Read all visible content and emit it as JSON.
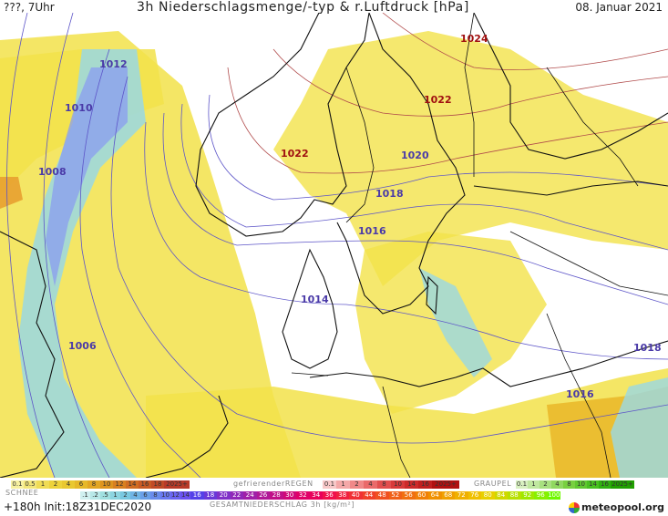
{
  "header": {
    "left": "???, 7Uhr",
    "title": "3h Niederschlagsmenge/-typ & r.Luftdruck [hPa]",
    "date": "08. Januar 2021"
  },
  "map": {
    "isobar_labels": [
      {
        "text": "1024",
        "color": "#a01010"
      },
      {
        "text": "1022",
        "color": "#a01010"
      },
      {
        "text": "1022",
        "color": "#a01010"
      },
      {
        "text": "1020",
        "color": "#4a3aa8"
      },
      {
        "text": "1018",
        "color": "#4a3aa8"
      },
      {
        "text": "1016",
        "color": "#4a3aa8"
      },
      {
        "text": "1014",
        "color": "#4a3aa8"
      },
      {
        "text": "1012",
        "color": "#4a3aa8"
      },
      {
        "text": "1010",
        "color": "#4a3aa8"
      },
      {
        "text": "1008",
        "color": "#4a3aa8"
      },
      {
        "text": "1006",
        "color": "#4a3aa8"
      },
      {
        "text": "1018",
        "color": "#4a3aa8"
      },
      {
        "text": "1016",
        "color": "#4a3aa8"
      }
    ]
  },
  "legend": {
    "rain_scale": [
      "0.1",
      "0.5",
      "1",
      "2",
      "4",
      "6",
      "8",
      "10",
      "12",
      "14",
      "16",
      "18",
      "2025+"
    ],
    "freezing_rain_label": "gefrierenderREGEN",
    "freezing_rain_scale": [
      "0.1",
      "1",
      "2",
      "4",
      "8",
      "10",
      "14",
      "16",
      "2025+"
    ],
    "graupel_label": "GRAUPEL",
    "graupel_scale": [
      "0.1",
      "1",
      "2",
      "4",
      "8",
      "10",
      "14",
      "16",
      "2025+"
    ],
    "snow_label": "SCHNEE",
    "snow_scale": [
      ".1",
      ".2",
      ".5",
      "1",
      "2",
      "4",
      "6",
      "8",
      "10",
      "12",
      "14"
    ],
    "total_scale": [
      "16",
      "18",
      "20",
      "22",
      "24",
      "26",
      "28",
      "30",
      "32",
      "34",
      "36",
      "38",
      "40",
      "44",
      "48",
      "52",
      "56",
      "60",
      "64",
      "68",
      "72",
      "76",
      "80",
      "84",
      "88",
      "92",
      "96",
      "100"
    ],
    "total_label": "GESAMTNIEDERSCHLAG 3h [kg/m²]"
  },
  "footer": {
    "run_info": "+180h Init:18Z31DEC2020",
    "logo": "meteopool.org"
  }
}
